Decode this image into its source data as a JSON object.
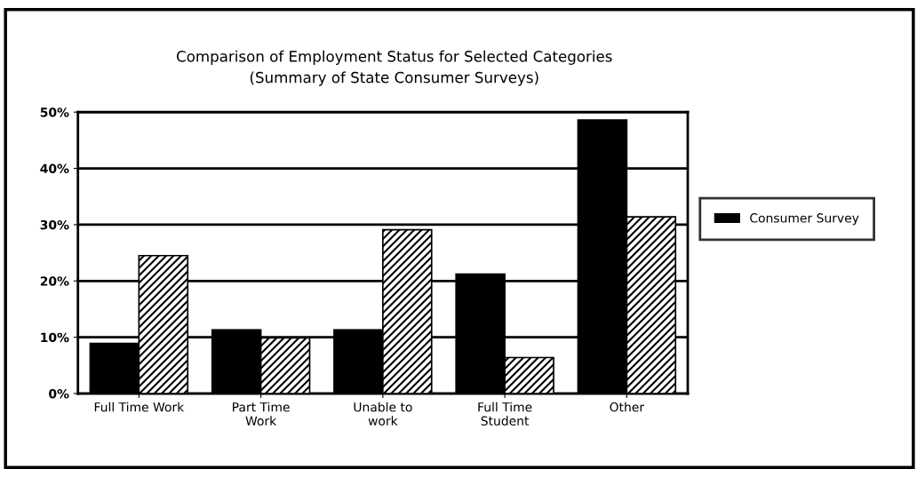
{
  "chart_data": {
    "type": "bar",
    "title": "Comparison of Employment Status for Selected Categories\n(Summary of State Consumer Surveys)",
    "categories": [
      "Full Time Work",
      "Part Time\nWork",
      "Unable to\nwork",
      "Full Time\nStudent",
      "Other"
    ],
    "series": [
      {
        "name": "Consumer Survey",
        "color": "#000000",
        "values": [
          8.9,
          11.3,
          11.3,
          21.2,
          48.6
        ]
      },
      {
        "color": "#000000",
        "values": [
          24.5,
          9.9,
          29.1,
          6.4,
          31.4
        ]
      }
    ],
    "ylim": [
      0,
      50
    ],
    "yticks": [
      {
        "value": 0,
        "label": "0%"
      },
      {
        "value": 10,
        "label": "10%"
      },
      {
        "value": 20,
        "label": "20%"
      },
      {
        "value": 30,
        "label": "30%"
      },
      {
        "value": 40,
        "label": "40%"
      },
      {
        "value": 50,
        "label": "50%"
      }
    ],
    "grid": "y",
    "legend": "right"
  }
}
